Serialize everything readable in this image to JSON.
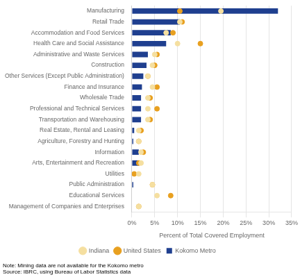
{
  "chart_data": {
    "type": "bar",
    "orientation": "horizontal",
    "categories": [
      "Manufacturing",
      "Retail Trade",
      "Accommodation and Food Services",
      "Health Care and Social Assistance",
      "Administrative and Waste Services",
      "Construction",
      "Other Services (Except Public Administration)",
      "Finance and Insurance",
      "Wholesale Trade",
      "Professional and Technical Services",
      "Transportation and Warehousing",
      "Real Estate, Rental and Leasing",
      "Agriculture, Forestry and Hunting",
      "Information",
      "Arts, Entertainment and Recreation",
      "Utilities",
      "Public Administration",
      "Educational Services",
      "Management of Companies and Enterprises"
    ],
    "series": [
      {
        "name": "Kokomo Metro",
        "type": "bar",
        "color": "#1f3f8f",
        "values": [
          32.0,
          10.5,
          8.5,
          7.5,
          3.5,
          3.2,
          2.5,
          2.2,
          2.0,
          2.0,
          2.0,
          0.5,
          0.3,
          1.5,
          1.5,
          0.0,
          0.3,
          0.0,
          0.0
        ]
      },
      {
        "name": "Indiana",
        "type": "scatter",
        "marker": "circle",
        "color": "#f5dfa0",
        "values": [
          19.5,
          10.5,
          7.5,
          10.0,
          5.0,
          4.5,
          3.5,
          4.5,
          3.5,
          3.5,
          3.5,
          1.5,
          1.5,
          2.0,
          2.0,
          1.5,
          4.5,
          5.5,
          1.5
        ]
      },
      {
        "name": "United States",
        "type": "scatter",
        "marker": "circle",
        "color": "#e8a020",
        "values": [
          10.5,
          11.0,
          9.0,
          15.0,
          5.5,
          5.0,
          3.5,
          5.5,
          4.0,
          5.5,
          4.0,
          2.0,
          1.5,
          2.5,
          1.5,
          0.5,
          4.5,
          8.5,
          1.5
        ]
      }
    ],
    "xlabel": "Percent of Total Covered Employment",
    "xlim": [
      0,
      35
    ],
    "xticks": [
      {
        "value": 0,
        "label": "0%"
      },
      {
        "value": 5,
        "label": "5%"
      },
      {
        "value": 10,
        "label": "10%"
      },
      {
        "value": 15,
        "label": "15%"
      },
      {
        "value": 20,
        "label": "20%"
      },
      {
        "value": 25,
        "label": "25%"
      },
      {
        "value": 30,
        "label": "30%"
      },
      {
        "value": 35,
        "label": "35%"
      }
    ],
    "grid": true,
    "legend": "bottom",
    "annotations": [
      "Note: Mining data are not available for the Kokomo metro",
      "Source: IBRC, using Bureau of Labor Statistics data"
    ]
  }
}
